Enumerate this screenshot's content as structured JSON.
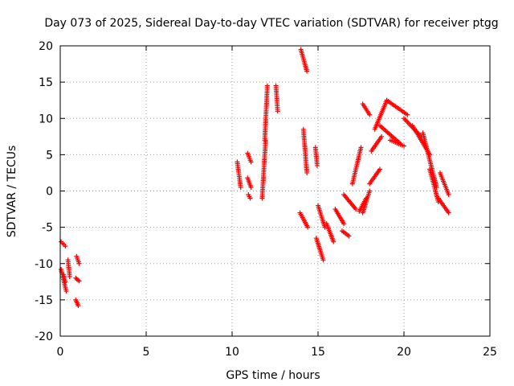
{
  "chart_data": {
    "type": "scatter",
    "title": "Day 073 of 2025, Sidereal Day-to-day VTEC variation (SDTVAR) for receiver ptgg",
    "xlabel": "GPS time / hours",
    "ylabel": "SDTVAR / TECUs",
    "xlim": [
      0,
      25
    ],
    "ylim": [
      -20,
      20
    ],
    "xticks": [
      "0",
      "5",
      "10",
      "15",
      "20",
      "25"
    ],
    "yticks": [
      "20",
      "15",
      "10",
      "5",
      "0",
      "-5",
      "-10",
      "-15",
      "-20"
    ],
    "xtick_values": [
      0,
      5,
      10,
      15,
      20,
      25
    ],
    "ytick_values": [
      20,
      15,
      10,
      5,
      0,
      -5,
      -10,
      -15,
      -20
    ],
    "grid": true,
    "marker": "+",
    "color": "#ff0000",
    "series": [
      {
        "name": "SDTVAR",
        "segments": [
          {
            "x": [
              0.05,
              0.3
            ],
            "y": [
              -7.0,
              -7.6
            ]
          },
          {
            "x": [
              0.05,
              0.35
            ],
            "y": [
              -10.8,
              -13.8
            ]
          },
          {
            "x": [
              0.2,
              0.3
            ],
            "y": [
              -11.5,
              -12.5
            ]
          },
          {
            "x": [
              0.45,
              0.55
            ],
            "y": [
              -9.5,
              -11.8
            ]
          },
          {
            "x": [
              0.95,
              1.1
            ],
            "y": [
              -9.0,
              -10.0
            ]
          },
          {
            "x": [
              0.9,
              1.1
            ],
            "y": [
              -12.0,
              -12.4
            ]
          },
          {
            "x": [
              0.9,
              1.05
            ],
            "y": [
              -15.0,
              -15.8
            ]
          },
          {
            "x": [
              10.3,
              10.5
            ],
            "y": [
              4.0,
              0.5
            ]
          },
          {
            "x": [
              10.9,
              11.1
            ],
            "y": [
              5.2,
              4.0
            ]
          },
          {
            "x": [
              10.9,
              11.1
            ],
            "y": [
              1.8,
              0.5
            ]
          },
          {
            "x": [
              10.95,
              11.05
            ],
            "y": [
              -0.5,
              -1.0
            ]
          },
          {
            "x": [
              11.75,
              11.95
            ],
            "y": [
              -1.0,
              7.0
            ]
          },
          {
            "x": [
              11.9,
              12.05
            ],
            "y": [
              7.0,
              14.5
            ]
          },
          {
            "x": [
              12.55,
              12.65
            ],
            "y": [
              14.5,
              11.0
            ]
          },
          {
            "x": [
              14.0,
              14.35
            ],
            "y": [
              19.5,
              16.5
            ]
          },
          {
            "x": [
              14.15,
              14.35
            ],
            "y": [
              8.5,
              2.5
            ]
          },
          {
            "x": [
              13.95,
              14.4
            ],
            "y": [
              -3.0,
              -5.0
            ]
          },
          {
            "x": [
              14.85,
              14.95
            ],
            "y": [
              6.0,
              3.5
            ]
          },
          {
            "x": [
              15.0,
              15.4
            ],
            "y": [
              -2.0,
              -5.0
            ]
          },
          {
            "x": [
              14.9,
              15.3
            ],
            "y": [
              -6.5,
              -9.5
            ]
          },
          {
            "x": [
              15.5,
              15.9
            ],
            "y": [
              -4.5,
              -7.0
            ]
          },
          {
            "x": [
              16.0,
              16.5
            ],
            "y": [
              -2.5,
              -4.5
            ]
          },
          {
            "x": [
              16.4,
              16.8
            ],
            "y": [
              -5.5,
              -6.2
            ]
          },
          {
            "x": [
              16.5,
              17.2
            ],
            "y": [
              -0.5,
              -2.5
            ]
          },
          {
            "x": [
              17.0,
              17.5
            ],
            "y": [
              1.0,
              6.0
            ]
          },
          {
            "x": [
              17.4,
              17.8
            ],
            "y": [
              -2.8,
              -1.0
            ]
          },
          {
            "x": [
              17.6,
              18.0
            ],
            "y": [
              -3.0,
              0.0
            ]
          },
          {
            "x": [
              18.0,
              18.6
            ],
            "y": [
              1.0,
              3.0
            ]
          },
          {
            "x": [
              17.6,
              18.0
            ],
            "y": [
              12.0,
              10.5
            ]
          },
          {
            "x": [
              18.1,
              18.7
            ],
            "y": [
              5.5,
              7.5
            ]
          },
          {
            "x": [
              18.3,
              19.0
            ],
            "y": [
              8.5,
              12.5
            ]
          },
          {
            "x": [
              19.0,
              20.2
            ],
            "y": [
              12.5,
              10.5
            ]
          },
          {
            "x": [
              18.6,
              19.8
            ],
            "y": [
              9.0,
              6.5
            ]
          },
          {
            "x": [
              19.2,
              20.0
            ],
            "y": [
              7.0,
              6.2
            ]
          },
          {
            "x": [
              20.0,
              21.0
            ],
            "y": [
              10.0,
              7.5
            ]
          },
          {
            "x": [
              20.5,
              21.5
            ],
            "y": [
              9.0,
              5.0
            ]
          },
          {
            "x": [
              21.1,
              21.9
            ],
            "y": [
              8.0,
              0.5
            ]
          },
          {
            "x": [
              21.5,
              22.0
            ],
            "y": [
              3.0,
              -1.5
            ]
          },
          {
            "x": [
              22.1,
              22.6
            ],
            "y": [
              2.5,
              -0.5
            ]
          },
          {
            "x": [
              22.0,
              22.6
            ],
            "y": [
              -1.0,
              -3.0
            ]
          }
        ]
      }
    ]
  }
}
